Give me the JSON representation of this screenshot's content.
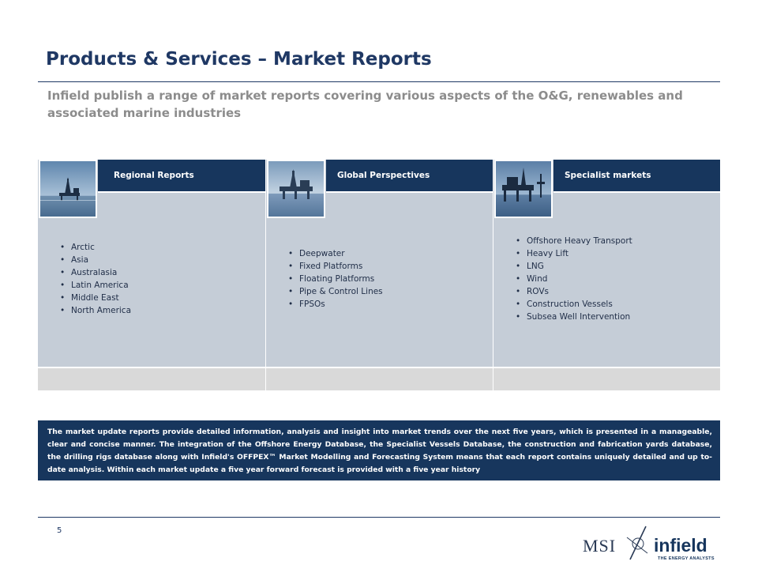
{
  "page": {
    "title": "Products & Services – Market Reports",
    "subtitle": "Infield publish a range of market reports covering various aspects of the O&G, renewables and associated marine industries",
    "page_number": "5"
  },
  "columns": [
    {
      "header": "Regional Reports",
      "image_icon": "offshore-rig-icon",
      "items": [
        "Arctic",
        "Asia",
        "Australasia",
        "Latin America",
        "Middle East",
        "North America"
      ]
    },
    {
      "header": "Global Perspectives",
      "image_icon": "offshore-platform-icon",
      "items": [
        "Deepwater",
        "Fixed Platforms",
        "Floating Platforms",
        "Pipe & Control Lines",
        "FPSOs"
      ]
    },
    {
      "header": "Specialist markets",
      "image_icon": "offshore-jackup-icon",
      "items": [
        "Offshore Heavy Transport",
        "Heavy Lift",
        "LNG",
        "Wind",
        "ROVs",
        "Construction Vessels",
        "Subsea Well Intervention"
      ]
    }
  ],
  "description": "The market update reports provide detailed information, analysis and insight into market trends over the next five years, which is presented in a manageable, clear and concise manner. The integration of the Offshore Energy Database, the Specialist Vessels Database, the construction and fabrication yards database, the drilling rigs database along with Infield's OFFPEX™ Market Modelling and Forecasting System means that each report contains uniquely detailed and up to-date analysis. Within each market update a five year forward forecast is provided with a five year history",
  "logos": {
    "msi": "MSI",
    "infield": "infield",
    "infield_tagline": "THE ENERGY ANALYSTS"
  },
  "colors": {
    "navy": "#17365d",
    "title": "#1f3864",
    "panel": "#c5cdd7",
    "strip": "#d9d9d9",
    "subtitle": "#8c8c8c"
  }
}
